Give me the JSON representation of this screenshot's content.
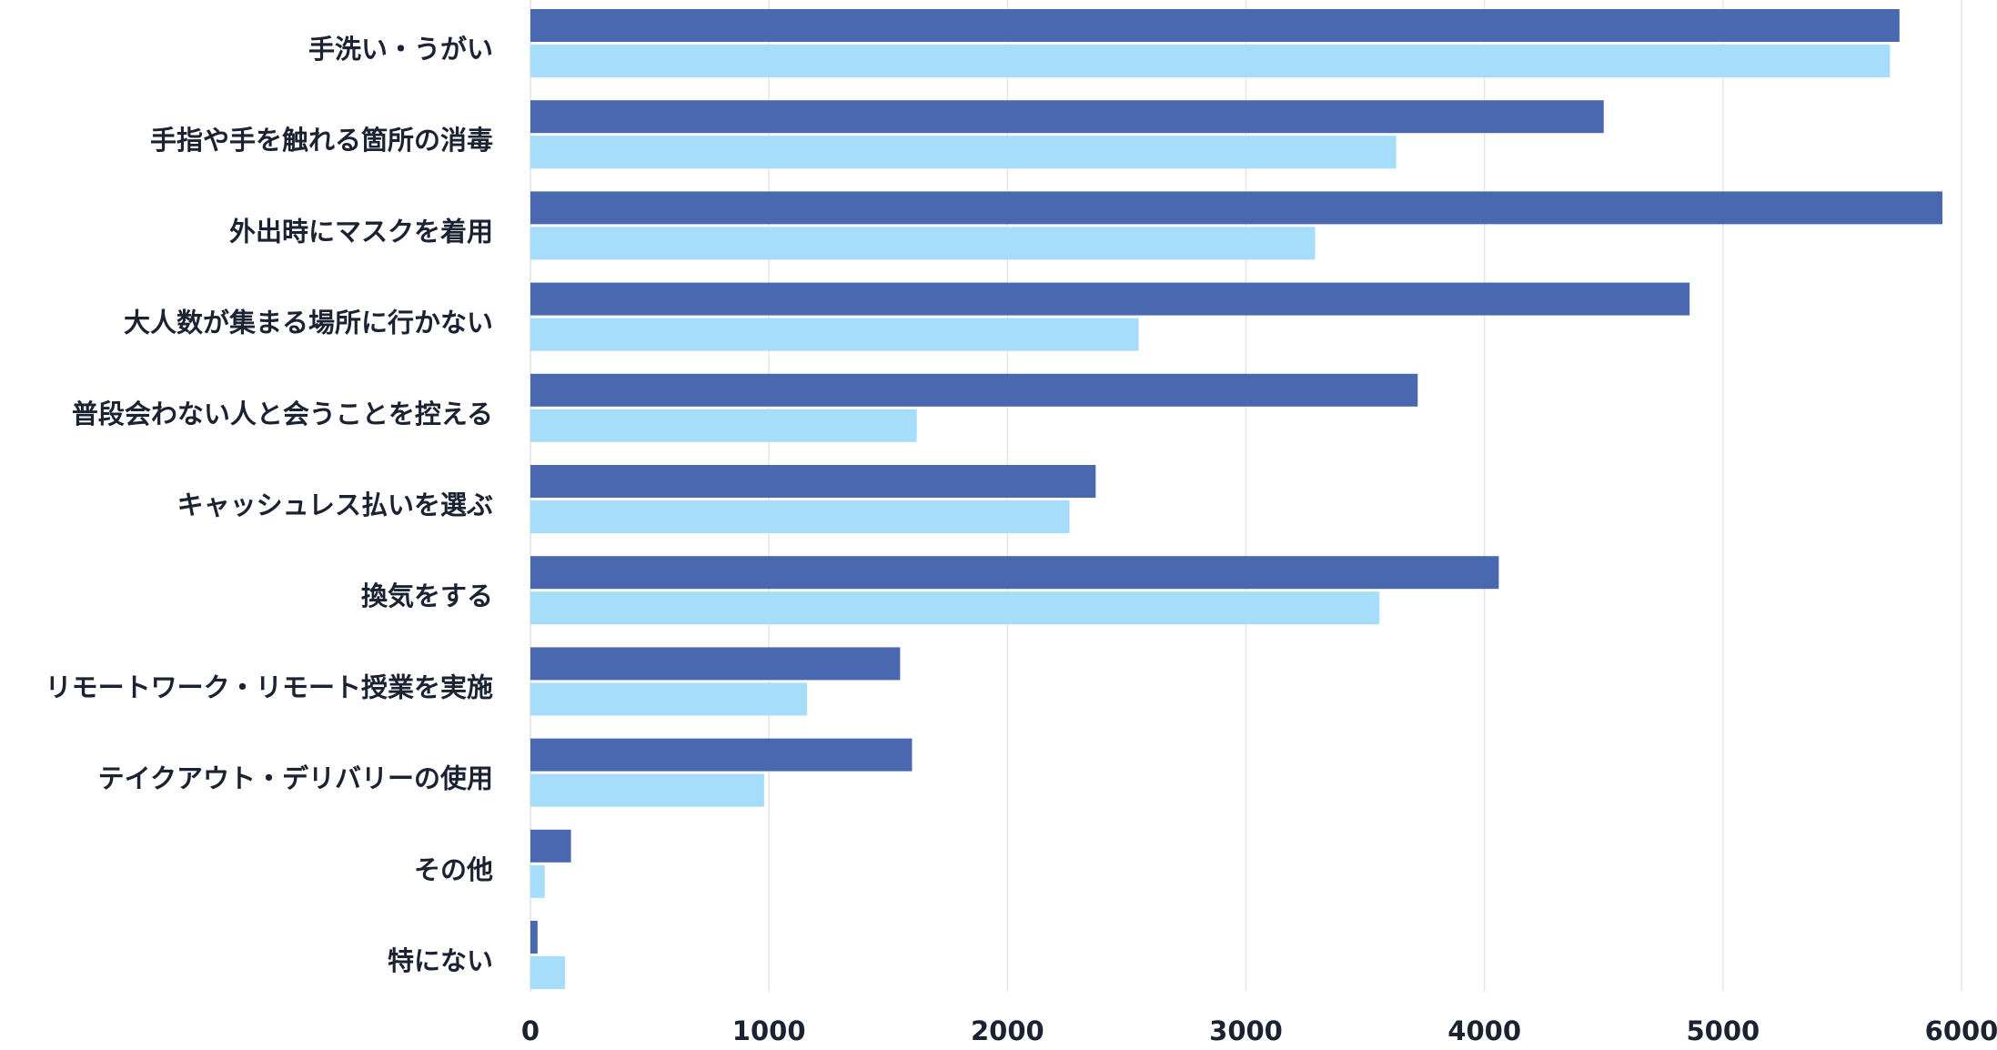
{
  "chart_data": {
    "type": "bar",
    "orientation": "horizontal",
    "categories": [
      "手洗い・うがい",
      "手指や手を触れる箇所の消毒",
      "外出時にマスクを着用",
      "大人数が集まる場所に行かない",
      "普段会わない人と会うことを控える",
      "キャッシュレス払いを選ぶ",
      "換気をする",
      "リモートワーク・リモート授業を実施",
      "テイクアウト・デリバリーの使用",
      "その他",
      "特にない"
    ],
    "series": [
      {
        "color": "#4a68b0",
        "values": [
          5740,
          4500,
          5920,
          4860,
          3720,
          2370,
          4060,
          1550,
          1600,
          170,
          30
        ]
      },
      {
        "color": "#a6ddfa",
        "values": [
          5700,
          3630,
          3290,
          2550,
          1620,
          2260,
          3560,
          1160,
          980,
          60,
          145
        ]
      }
    ],
    "xlim": [
      0,
      6000
    ],
    "xticks": [
      "0",
      "1000",
      "2000",
      "3000",
      "4000",
      "5000",
      "6000"
    ],
    "grid": true,
    "title": "",
    "xlabel": "",
    "ylabel": ""
  }
}
